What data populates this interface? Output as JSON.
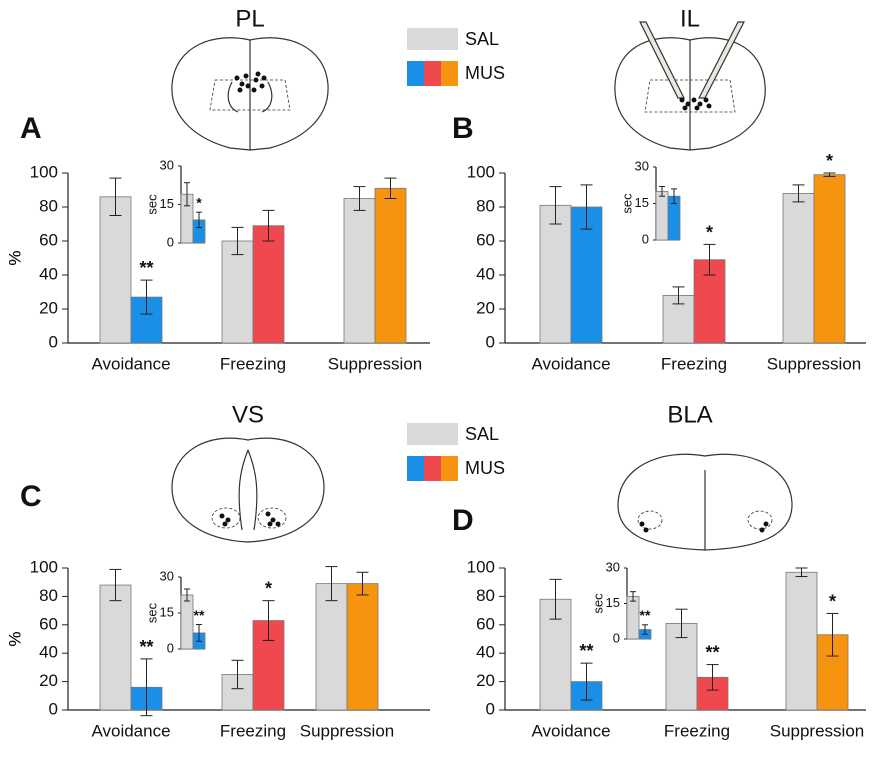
{
  "chart_data": [
    {
      "type": "bar",
      "label": "A",
      "title": "PL",
      "ylabel": "%",
      "categories": [
        "Avoidance",
        "Freezing",
        "Suppression"
      ],
      "ylim": [
        0,
        100
      ],
      "yticks": [
        0,
        20,
        40,
        60,
        80,
        100
      ],
      "series": [
        {
          "name": "SAL",
          "color": "#d9d9d9",
          "values": [
            86,
            60,
            85
          ],
          "errors": [
            11,
            8,
            7
          ]
        },
        {
          "name": "MUS",
          "colors": [
            "#1a8fe8",
            "#f0484f",
            "#f7940f"
          ],
          "values": [
            27,
            69,
            91
          ],
          "errors": [
            10,
            9,
            6
          ],
          "significance": [
            "**",
            null,
            null
          ]
        }
      ],
      "inset": {
        "ylabel": "sec",
        "ylim": [
          0,
          30
        ],
        "yticks": [
          0,
          15,
          30
        ],
        "series": [
          {
            "values": [
              19
            ],
            "errors": [
              4.5
            ]
          },
          {
            "values": [
              9
            ],
            "errors": [
              3
            ],
            "significance": [
              "*"
            ]
          }
        ]
      }
    },
    {
      "type": "bar",
      "label": "B",
      "title": "IL",
      "ylabel": "%",
      "categories": [
        "Avoidance",
        "Freezing",
        "Suppression"
      ],
      "ylim": [
        0,
        100
      ],
      "yticks": [
        0,
        20,
        40,
        60,
        80,
        100
      ],
      "series": [
        {
          "name": "SAL",
          "color": "#d9d9d9",
          "values": [
            81,
            28,
            88
          ],
          "errors": [
            11,
            5,
            5
          ]
        },
        {
          "name": "MUS",
          "colors": [
            "#1a8fe8",
            "#f0484f",
            "#f7940f"
          ],
          "values": [
            80,
            49,
            99
          ],
          "errors": [
            13,
            9,
            1
          ],
          "significance": [
            null,
            "*",
            "*"
          ]
        }
      ],
      "inset": {
        "ylabel": "sec",
        "ylim": [
          0,
          30
        ],
        "yticks": [
          0,
          15,
          30
        ],
        "series": [
          {
            "values": [
              20
            ],
            "errors": [
              2
            ]
          },
          {
            "values": [
              18
            ],
            "errors": [
              3
            ]
          }
        ]
      }
    },
    {
      "type": "bar",
      "label": "C",
      "title": "VS",
      "ylabel": "%",
      "categories": [
        "Avoidance",
        "Freezing",
        "Suppression"
      ],
      "ylim": [
        0,
        100
      ],
      "yticks": [
        0,
        20,
        40,
        60,
        80,
        100
      ],
      "series": [
        {
          "name": "SAL",
          "color": "#d9d9d9",
          "values": [
            88,
            25,
            89
          ],
          "errors": [
            11,
            10,
            12
          ]
        },
        {
          "name": "MUS",
          "colors": [
            "#1a8fe8",
            "#f0484f",
            "#f7940f"
          ],
          "values": [
            16,
            63,
            89
          ],
          "errors": [
            20,
            14,
            8
          ],
          "significance": [
            "**",
            "*",
            null
          ]
        }
      ],
      "inset": {
        "ylabel": "sec",
        "ylim": [
          0,
          30
        ],
        "yticks": [
          0,
          15,
          30
        ],
        "series": [
          {
            "values": [
              22.5
            ],
            "errors": [
              2.5
            ]
          },
          {
            "values": [
              6.7
            ],
            "errors": [
              3.5
            ],
            "significance": [
              "**"
            ]
          }
        ]
      }
    },
    {
      "type": "bar",
      "label": "D",
      "title": "BLA",
      "ylabel": "%",
      "categories": [
        "Avoidance",
        "Freezing",
        "Suppression"
      ],
      "ylim": [
        0,
        100
      ],
      "yticks": [
        0,
        20,
        40,
        60,
        80,
        100
      ],
      "series": [
        {
          "name": "SAL",
          "color": "#d9d9d9",
          "values": [
            78,
            61,
            97
          ],
          "errors": [
            14,
            10,
            3
          ]
        },
        {
          "name": "MUS",
          "colors": [
            "#1a8fe8",
            "#f0484f",
            "#f7940f"
          ],
          "values": [
            20,
            23,
            53
          ],
          "errors": [
            13,
            9,
            15
          ],
          "significance": [
            "**",
            "**",
            "*"
          ]
        }
      ],
      "inset": {
        "ylabel": "sec",
        "ylim": [
          0,
          30
        ],
        "yticks": [
          0,
          15,
          30
        ],
        "series": [
          {
            "values": [
              18
            ],
            "errors": [
              2
            ]
          },
          {
            "values": [
              4
            ],
            "errors": [
              2
            ],
            "significance": [
              "**"
            ]
          }
        ]
      }
    }
  ]
}
